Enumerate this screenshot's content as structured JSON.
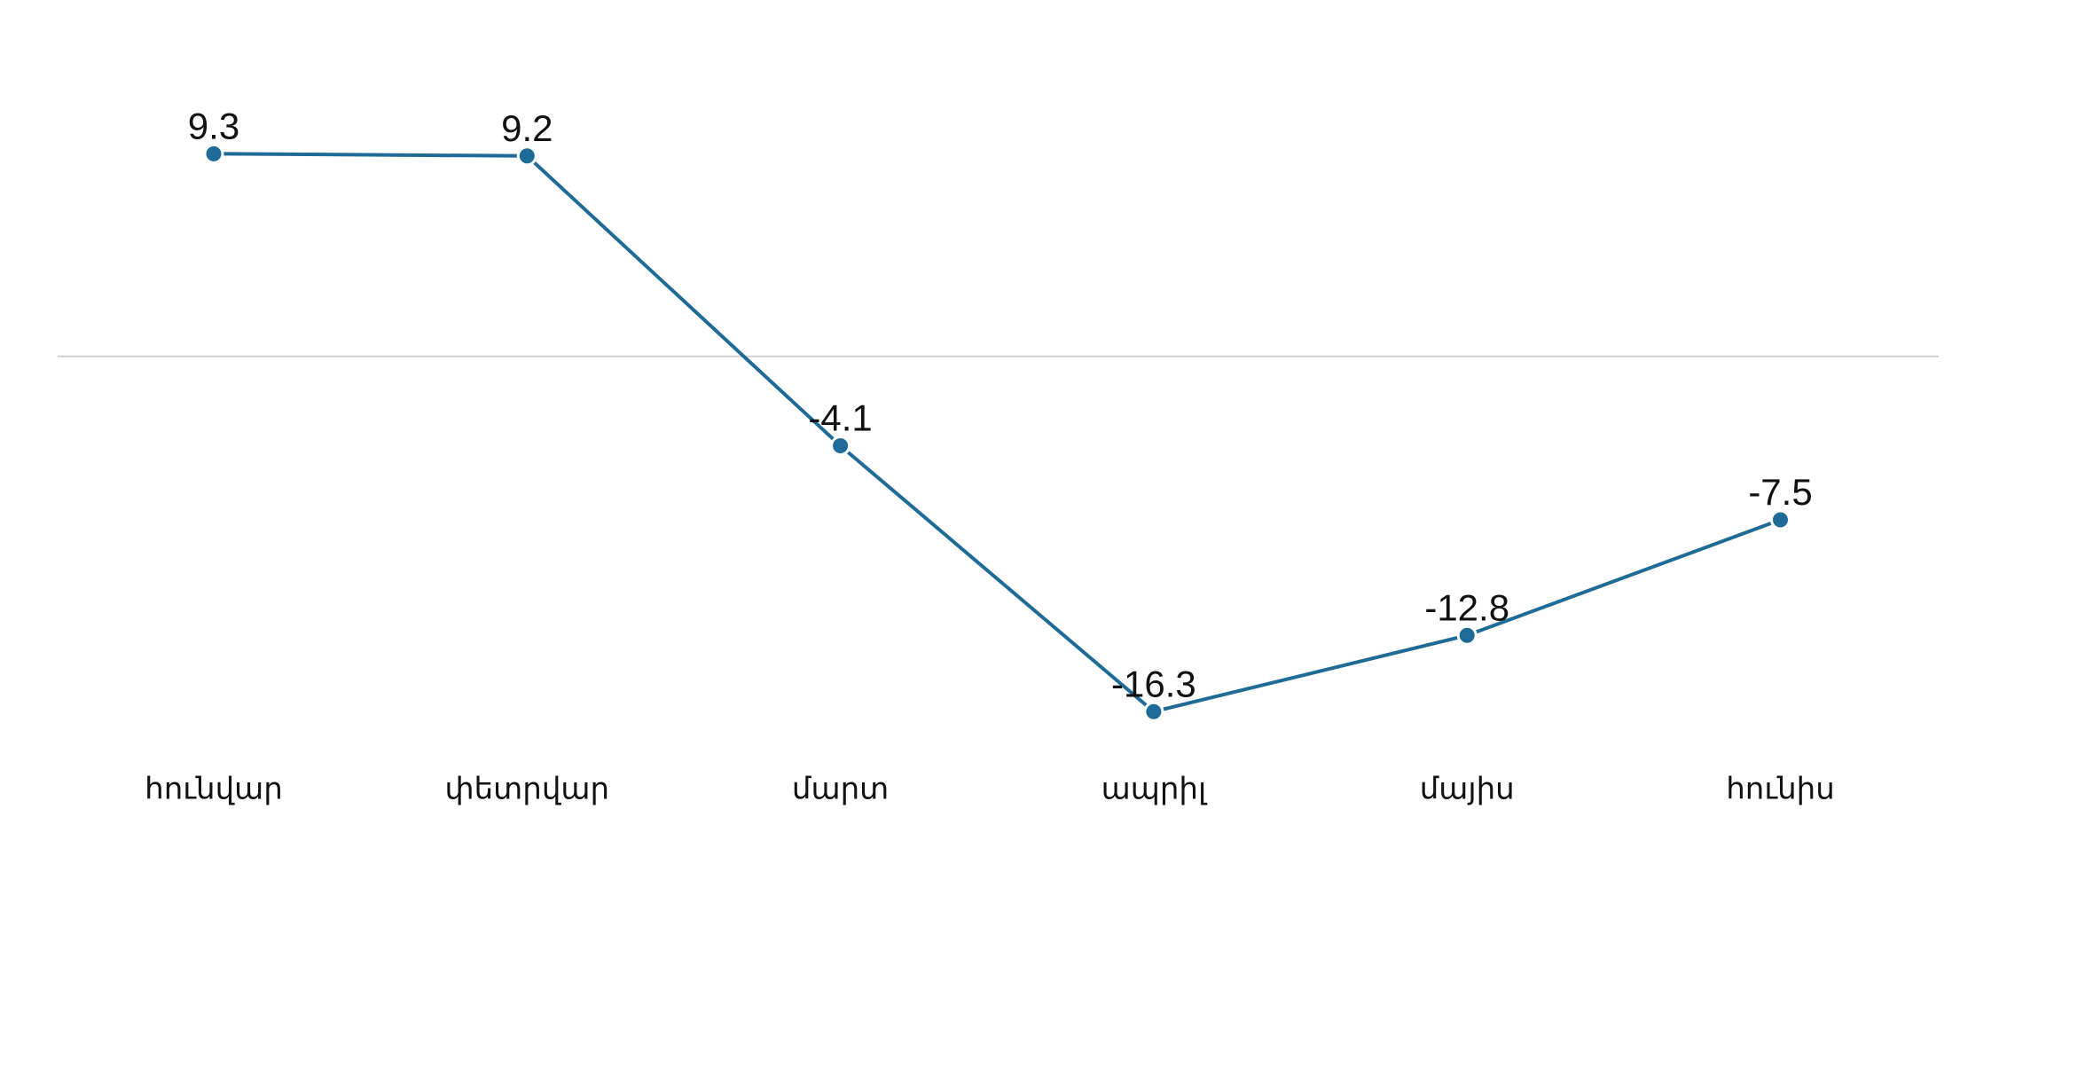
{
  "chart_data": {
    "type": "line",
    "categories": [
      "հունվար",
      "փետրվար",
      "մարտ",
      "ապրիլ",
      "մայիս",
      "հունիս"
    ],
    "values": [
      9.3,
      9.2,
      -4.1,
      -16.3,
      -12.8,
      -7.5
    ],
    "color": "#1f6b98",
    "ylim": [
      -18,
      12
    ]
  }
}
